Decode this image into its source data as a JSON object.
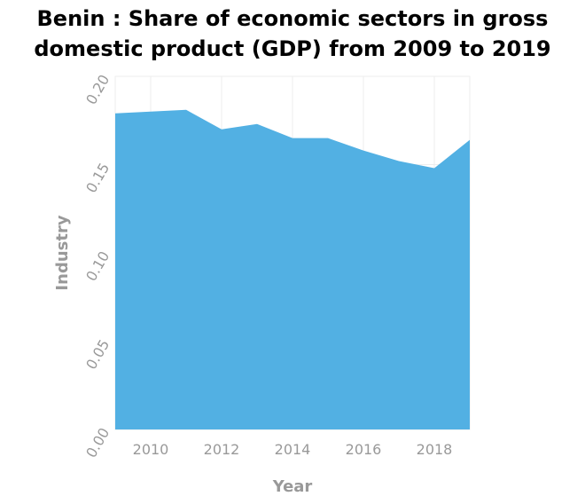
{
  "chart_data": {
    "type": "area",
    "title": "Benin : Share of economic sectors in gross domestic product (GDP) from 2009 to 2019",
    "title_lines": [
      "Benin : Share of economic sectors in gross",
      "domestic product (GDP) from 2009 to 2019"
    ],
    "xlabel": "Year",
    "ylabel": "Industry",
    "x": [
      2009,
      2010,
      2011,
      2012,
      2013,
      2014,
      2015,
      2016,
      2017,
      2018,
      2019
    ],
    "series": [
      {
        "values": [
          0.179,
          0.18,
          0.181,
          0.17,
          0.173,
          0.165,
          0.165,
          0.158,
          0.152,
          0.148,
          0.164
        ],
        "color": "#52b0e3"
      }
    ],
    "xlim": [
      2009,
      2019
    ],
    "ylim": [
      0,
      0.2
    ],
    "x_ticks": [
      2010,
      2012,
      2014,
      2016,
      2018
    ],
    "x_tick_labels": [
      "2010",
      "2012",
      "2014",
      "2016",
      "2018"
    ],
    "y_ticks": [
      0,
      0.05,
      0.1,
      0.15,
      0.2
    ],
    "y_tick_labels": [
      "0.00",
      "0.05",
      "0.10",
      "0.15",
      "0.20"
    ],
    "grid": true,
    "legend": "none",
    "colors": {
      "area": "#52b0e3",
      "grid": "#eeeeee",
      "axis_text": "#999999",
      "title": "#000000"
    }
  }
}
